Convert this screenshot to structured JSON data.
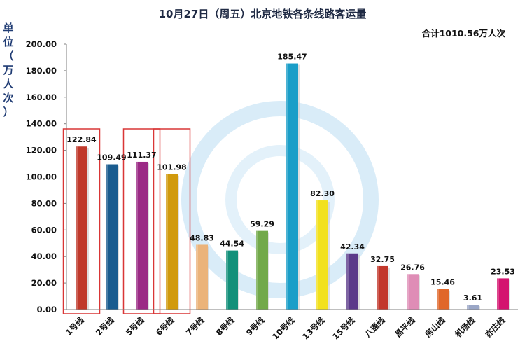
{
  "chart_data": {
    "type": "bar",
    "title": "10月27日（周五）北京地铁各条线路客运量",
    "total_label": "合计1010.56万人次",
    "ylabel": "单位（万人次）",
    "ylim": [
      0,
      200
    ],
    "ytick_step": 20,
    "ytick_labels": [
      "0.00",
      "20.00",
      "40.00",
      "60.00",
      "80.00",
      "100.00",
      "120.00",
      "140.00",
      "160.00",
      "180.00",
      "200.00"
    ],
    "categories": [
      "1号线",
      "2号线",
      "5号线",
      "6号线",
      "7号线",
      "8号线",
      "9号线",
      "10号线",
      "13号线",
      "15号线",
      "八通线",
      "昌平线",
      "房山线",
      "机场线",
      "亦庄线"
    ],
    "values": [
      122.84,
      109.49,
      111.37,
      101.98,
      48.83,
      44.54,
      59.29,
      185.47,
      82.3,
      42.34,
      32.75,
      26.76,
      15.46,
      3.61,
      23.53
    ],
    "value_labels": [
      "122.84",
      "109.49",
      "111.37",
      "101.98",
      "48.83",
      "44.54",
      "59.29",
      "185.47",
      "82.30",
      "42.34",
      "32.75",
      "26.76",
      "15.46",
      "3.61",
      "23.53"
    ],
    "colors": [
      "#c0392b",
      "#1a5c8f",
      "#9b2a85",
      "#d19a0d",
      "#ebb37a",
      "#13907a",
      "#72a94a",
      "#1a9ec8",
      "#f2e11d",
      "#5b3a8a",
      "#c2372b",
      "#df8db6",
      "#e0672a",
      "#9aa6c6",
      "#d4136f"
    ],
    "highlighted_categories": [
      "1号线",
      "5号线",
      "6号线"
    ],
    "highlight_color": "#d93636",
    "grid": false
  }
}
